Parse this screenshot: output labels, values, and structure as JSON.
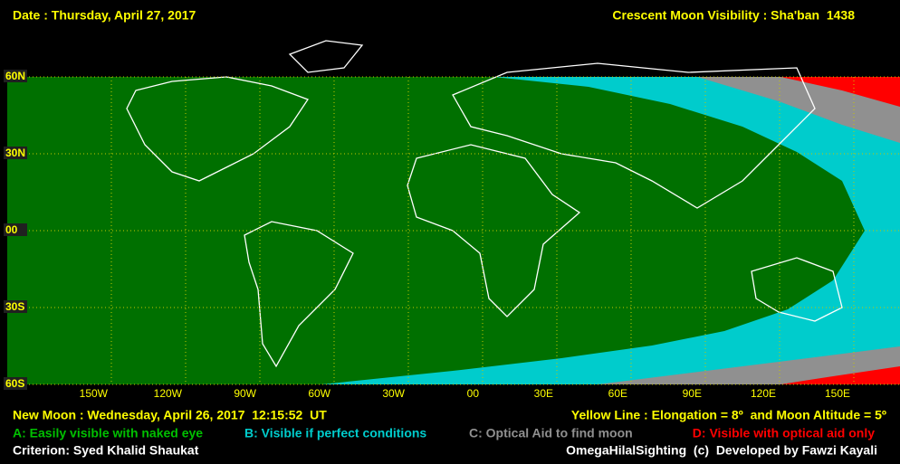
{
  "header": {
    "date": "Date : Thursday, April 27, 2017",
    "title": "Crescent Moon Visibility : Sha'ban  1438"
  },
  "latitude_labels": [
    "60N",
    "30N",
    "00",
    "30S",
    "60S"
  ],
  "longitude_labels": [
    "150W",
    "120W",
    "90W",
    "60W",
    "30W",
    "00",
    "30E",
    "60E",
    "90E",
    "120E",
    "150E"
  ],
  "footer": {
    "new_moon": "New Moon : Wednesday, April 26, 2017  12:15:52  UT",
    "yellow_line": "Yellow Line : Elongation = 8º  and Moon Altitude = 5º",
    "legend": [
      "A: Easily visible with naked eye",
      "B: Visible if perfect conditions",
      "C: Optical Aid to find moon",
      "D: Visible with optical aid only"
    ],
    "criterion": "Criterion: Syed Khalid Shaukat",
    "credit": "OmegaHilalSighting  (c)  Developed by Fawzi Kayali"
  }
}
